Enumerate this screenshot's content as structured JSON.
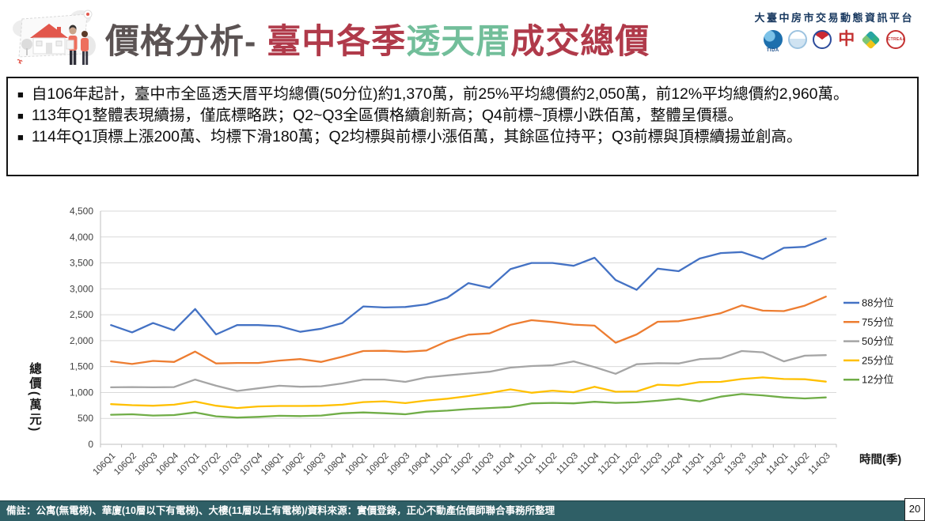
{
  "header": {
    "title_parts": [
      {
        "text": "價格分析- ",
        "color": "#5B5353"
      },
      {
        "text": "臺中各季",
        "color": "#B03A4A"
      },
      {
        "text": "透天厝",
        "color": "#72BE9A"
      },
      {
        "text": "成交總價",
        "color": "#B03A4A"
      }
    ],
    "platform_name": "大臺中房市交易動態資訊平台",
    "logos": [
      {
        "name": "tida-logo",
        "label": "TIDA"
      },
      {
        "name": "city-hall-seal-logo"
      },
      {
        "name": "national-emblem-seal-logo"
      },
      {
        "name": "chung-logo",
        "glyph": "中"
      },
      {
        "name": "cube-logo"
      },
      {
        "name": "ctreaa-logo",
        "label": "CTREAA"
      }
    ]
  },
  "bullets": {
    "marker": "■",
    "items": [
      {
        "text": "自106年起計，臺中市全區透天厝平均總價(50分位)約1,370萬，前25%平均總價約2,050萬，前12%平均總價約2,960萬。"
      },
      {
        "text": "113年Q1整體表現續揚，僅底標略跌；Q2~Q3全區價格續創新高；Q4前標~頂標小跌佰萬，整體呈價穩。"
      },
      {
        "text": "114年Q1頂標上漲200萬、均標下滑180萬；Q2均標與前標小漲佰萬，其餘區位持平；Q3前標與頂標續揚並創高。"
      }
    ]
  },
  "chart_data": {
    "type": "line",
    "title": "",
    "xlabel": "時間(季)",
    "ylabel": "總價(萬元)",
    "ylim": [
      0,
      4500
    ],
    "ytick_step": 500,
    "grid": true,
    "legend_position": "right",
    "categories": [
      "106Q1",
      "106Q2",
      "106Q3",
      "106Q4",
      "107Q1",
      "107Q2",
      "107Q3",
      "107Q4",
      "108Q1",
      "108Q2",
      "108Q3",
      "108Q4",
      "109Q1",
      "109Q2",
      "109Q3",
      "109Q4",
      "110Q1",
      "110Q2",
      "110Q3",
      "110Q4",
      "111Q1",
      "111Q2",
      "111Q3",
      "111Q4",
      "112Q1",
      "112Q2",
      "112Q3",
      "112Q4",
      "113Q1",
      "113Q2",
      "113Q3",
      "113Q4",
      "114Q1",
      "114Q2",
      "114Q3"
    ],
    "series": [
      {
        "name": "88分位",
        "color": "#4472C4",
        "values": [
          2300,
          2160,
          2340,
          2200,
          2610,
          2120,
          2300,
          2300,
          2280,
          2170,
          2230,
          2340,
          2660,
          2640,
          2650,
          2700,
          2830,
          3110,
          3020,
          3380,
          3500,
          3500,
          3445,
          3600,
          3170,
          2980,
          3390,
          3340,
          3585,
          3690,
          3710,
          3575,
          3790,
          3810,
          3970
        ]
      },
      {
        "name": "75分位",
        "color": "#ED7D31",
        "values": [
          1600,
          1550,
          1610,
          1590,
          1790,
          1560,
          1570,
          1570,
          1615,
          1645,
          1590,
          1690,
          1800,
          1805,
          1785,
          1810,
          1990,
          2115,
          2140,
          2305,
          2395,
          2360,
          2310,
          2290,
          1960,
          2120,
          2365,
          2375,
          2445,
          2530,
          2680,
          2580,
          2570,
          2675,
          2850
        ]
      },
      {
        "name": "50分位",
        "color": "#A5A5A5",
        "values": [
          1100,
          1105,
          1100,
          1105,
          1250,
          1130,
          1030,
          1080,
          1130,
          1110,
          1120,
          1175,
          1250,
          1250,
          1205,
          1290,
          1330,
          1365,
          1400,
          1480,
          1510,
          1525,
          1600,
          1490,
          1360,
          1545,
          1565,
          1560,
          1645,
          1660,
          1800,
          1775,
          1600,
          1710,
          1720
        ]
      },
      {
        "name": "25分位",
        "color": "#FFC000",
        "values": [
          775,
          755,
          745,
          765,
          825,
          745,
          700,
          730,
          740,
          740,
          745,
          765,
          815,
          830,
          795,
          845,
          880,
          930,
          990,
          1060,
          995,
          1035,
          1005,
          1110,
          1015,
          1020,
          1150,
          1135,
          1200,
          1205,
          1260,
          1290,
          1260,
          1255,
          1210
        ]
      },
      {
        "name": "12分位",
        "color": "#70AD47",
        "values": [
          570,
          580,
          555,
          565,
          615,
          540,
          515,
          530,
          550,
          545,
          555,
          600,
          615,
          600,
          580,
          630,
          650,
          680,
          700,
          720,
          790,
          800,
          790,
          820,
          800,
          810,
          840,
          880,
          830,
          920,
          970,
          945,
          905,
          885,
          905
        ]
      }
    ]
  },
  "footer": {
    "note": "備註：公寓(無電梯)、華廈(10層以下有電梯)、大樓(11層以上有電梯)/資料來源：實價登錄，正心不動產估價師聯合事務所整理",
    "page_number": "20"
  }
}
